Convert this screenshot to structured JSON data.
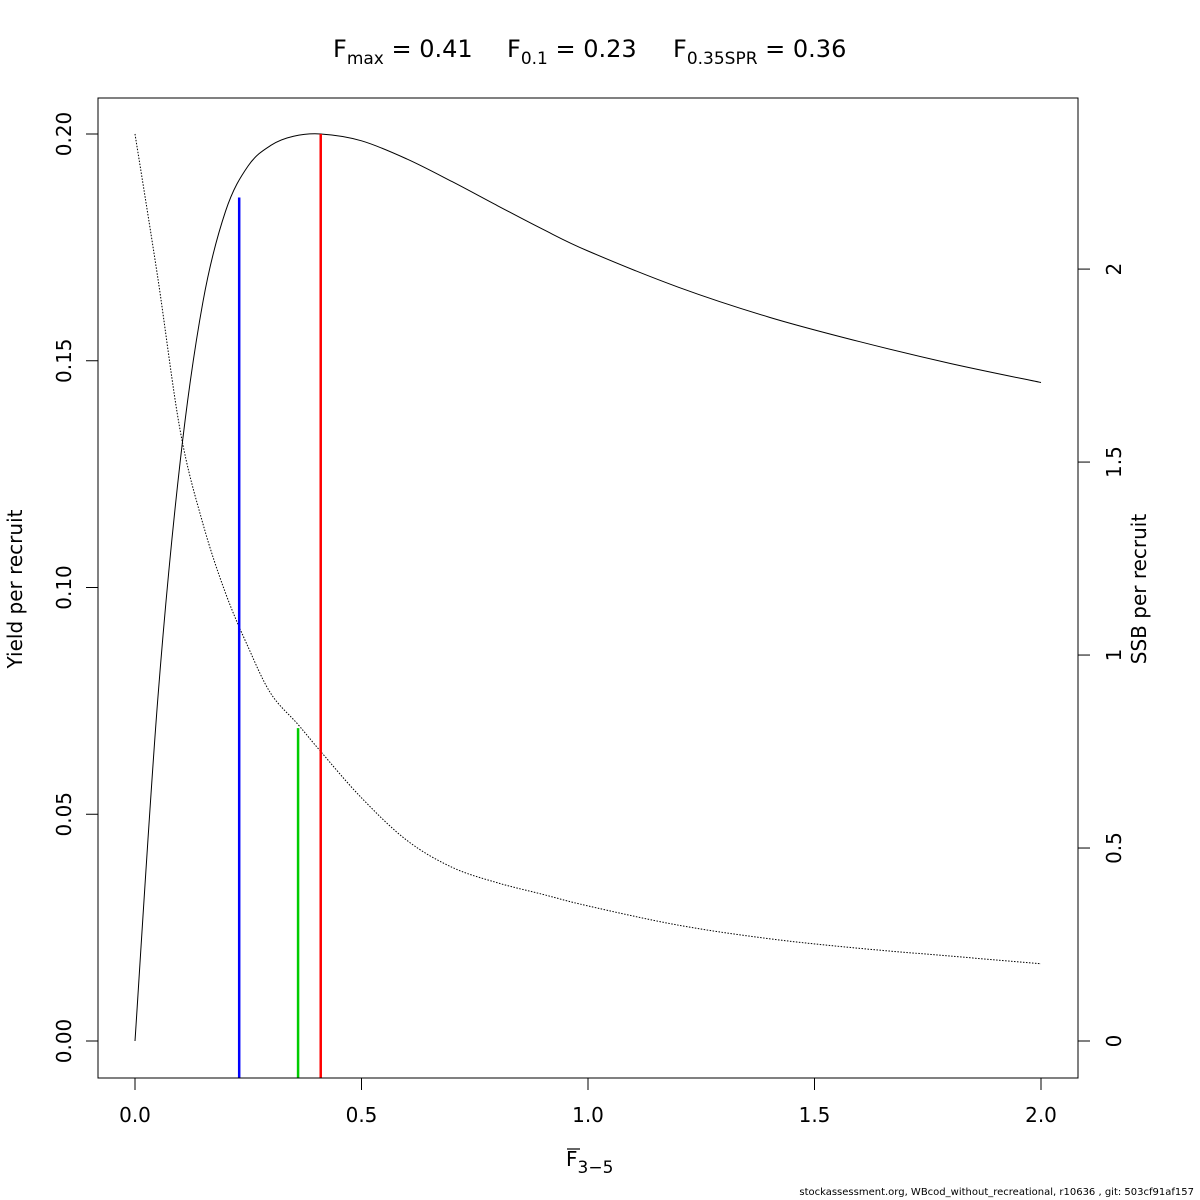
{
  "footer": "stockassessment.org, WBcod_without_recreational, r10636 , git: 503cf91af157",
  "chart_data": {
    "type": "line",
    "title_parts": [
      {
        "main": "F",
        "sub": "max",
        "value": "= 0.41"
      },
      {
        "main": "F",
        "sub": "0.1",
        "value": "= 0.23"
      },
      {
        "main": "F",
        "sub": "0.35SPR",
        "value": "= 0.36"
      }
    ],
    "xlabel": {
      "main": "F",
      "sub": "3−5",
      "overbar": true
    },
    "ylabel_left": "Yield per recruit",
    "ylabel_right": "SSB per recruit",
    "xlim": [
      0,
      2
    ],
    "ylim_left": [
      0,
      0.2
    ],
    "ylim_right": [
      0,
      2.35
    ],
    "x_ticks": [
      "0.0",
      "0.5",
      "1.0",
      "1.5",
      "2.0"
    ],
    "y_left_ticks": [
      "0.00",
      "0.05",
      "0.10",
      "0.15",
      "0.20"
    ],
    "y_right_ticks": [
      "0",
      "0.5",
      "1",
      "1.5",
      "2"
    ],
    "grid": false,
    "series": [
      {
        "axis": "left",
        "style": "solid",
        "color": "#000000",
        "x": [
          0.0,
          0.05,
          0.1,
          0.15,
          0.2,
          0.25,
          0.3,
          0.35,
          0.41,
          0.5,
          0.6,
          0.7,
          0.8,
          0.9,
          1.0,
          1.2,
          1.4,
          1.6,
          1.8,
          2.0
        ],
        "y": [
          0.0,
          0.075,
          0.128,
          0.163,
          0.183,
          0.193,
          0.1975,
          0.1995,
          0.2,
          0.1985,
          0.1945,
          0.1895,
          0.1842,
          0.179,
          0.1742,
          0.1662,
          0.1596,
          0.1542,
          0.1494,
          0.1452
        ]
      },
      {
        "axis": "right",
        "style": "dotted",
        "color": "#000000",
        "x": [
          0.0,
          0.05,
          0.1,
          0.15,
          0.2,
          0.25,
          0.3,
          0.36,
          0.41,
          0.5,
          0.6,
          0.7,
          0.8,
          0.9,
          1.0,
          1.2,
          1.4,
          1.6,
          1.8,
          2.0
        ],
        "y": [
          2.35,
          1.98,
          1.58,
          1.34,
          1.16,
          1.02,
          0.9,
          0.82,
          0.75,
          0.63,
          0.52,
          0.45,
          0.41,
          0.38,
          0.35,
          0.3,
          0.265,
          0.24,
          0.22,
          0.2
        ]
      }
    ],
    "reference_lines": [
      {
        "name": "F0.1",
        "x": 0.23,
        "y_top": 0.186,
        "color": "#0000ff"
      },
      {
        "name": "F0.35SPR",
        "x": 0.36,
        "y_top": 0.069,
        "color": "#00cc00"
      },
      {
        "name": "Fmax",
        "x": 0.41,
        "y_top": 0.2,
        "color": "#ff0000"
      }
    ]
  }
}
